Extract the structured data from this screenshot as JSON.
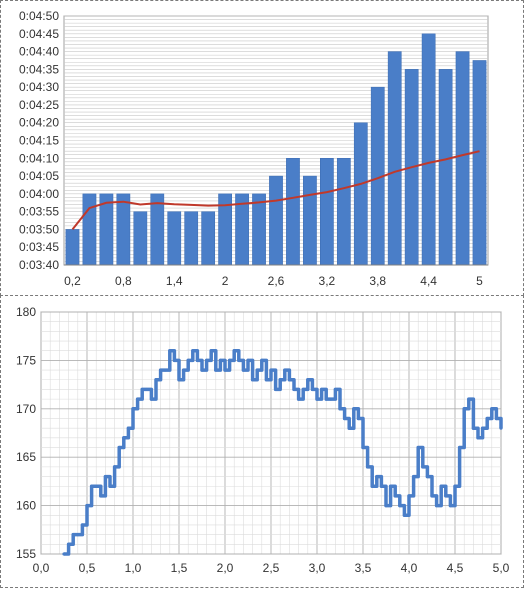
{
  "chart_data": [
    {
      "type": "bar",
      "title": "",
      "xlabel": "",
      "ylabel": "",
      "y_tick_labels": [
        "0:03:40",
        "0:03:45",
        "0:03:50",
        "0:03:55",
        "0:04:00",
        "0:04:05",
        "0:04:10",
        "0:04:15",
        "0:04:20",
        "0:04:25",
        "0:04:30",
        "0:04:35",
        "0:04:40",
        "0:04:45",
        "0:04:50"
      ],
      "ylim_seconds": [
        220,
        290
      ],
      "x_tick_labels": [
        "0,2",
        "0,8",
        "1,4",
        "2",
        "2,6",
        "3,2",
        "3,8",
        "4,4",
        "5"
      ],
      "categories": [
        0.2,
        0.4,
        0.6,
        0.8,
        1.0,
        1.2,
        1.4,
        1.6,
        1.8,
        2.0,
        2.2,
        2.4,
        2.6,
        2.8,
        3.0,
        3.2,
        3.4,
        3.6,
        3.8,
        4.0,
        4.2,
        4.4,
        4.6,
        4.8,
        5.0
      ],
      "values_seconds": [
        230,
        240,
        240,
        240,
        235,
        240,
        235,
        235,
        235,
        240,
        240,
        240,
        245,
        250,
        245,
        250,
        250,
        260,
        270,
        280,
        275,
        285,
        275,
        280,
        277.5
      ],
      "trend_seconds": [
        230,
        236,
        237.5,
        237.8,
        237,
        237.4,
        237.1,
        236.9,
        236.7,
        236.8,
        237.2,
        237.6,
        238.1,
        238.9,
        239.7,
        240.5,
        241.6,
        242.8,
        244.4,
        246.2,
        247.5,
        248.7,
        249.7,
        250.9,
        252
      ],
      "bar_color": "#4a7ec8",
      "trend_color": "#c0392b",
      "grid": true
    },
    {
      "type": "line",
      "title": "",
      "xlabel": "",
      "ylabel": "",
      "x_tick_labels": [
        "0,0",
        "0,5",
        "1,0",
        "1,5",
        "2,0",
        "2,5",
        "3,0",
        "3,5",
        "4,0",
        "4,5",
        "5,0"
      ],
      "y_tick_labels": [
        "155",
        "160",
        "165",
        "170",
        "175",
        "180"
      ],
      "xlim": [
        0,
        5
      ],
      "ylim": [
        155,
        180
      ],
      "x": [
        0.25,
        0.3,
        0.35,
        0.4,
        0.45,
        0.5,
        0.55,
        0.6,
        0.65,
        0.7,
        0.75,
        0.8,
        0.85,
        0.9,
        0.95,
        1.0,
        1.05,
        1.1,
        1.15,
        1.2,
        1.25,
        1.3,
        1.35,
        1.4,
        1.45,
        1.5,
        1.55,
        1.6,
        1.65,
        1.7,
        1.75,
        1.8,
        1.85,
        1.9,
        1.95,
        2.0,
        2.05,
        2.1,
        2.15,
        2.2,
        2.25,
        2.3,
        2.35,
        2.4,
        2.45,
        2.5,
        2.55,
        2.6,
        2.65,
        2.7,
        2.75,
        2.8,
        2.85,
        2.9,
        2.95,
        3.0,
        3.05,
        3.1,
        3.15,
        3.2,
        3.25,
        3.3,
        3.35,
        3.4,
        3.45,
        3.5,
        3.55,
        3.6,
        3.65,
        3.7,
        3.75,
        3.8,
        3.85,
        3.9,
        3.95,
        4.0,
        4.05,
        4.1,
        4.15,
        4.2,
        4.25,
        4.3,
        4.35,
        4.4,
        4.45,
        4.5,
        4.55,
        4.6,
        4.65,
        4.7,
        4.75,
        4.8,
        4.85,
        4.9,
        4.95,
        5.0
      ],
      "values": [
        155,
        156,
        157,
        157,
        158,
        160,
        162,
        162,
        161,
        163,
        162,
        164,
        166,
        167,
        168,
        170,
        171,
        172,
        172,
        171,
        173,
        174,
        174,
        176,
        175,
        173,
        174,
        175,
        176,
        175,
        174,
        175,
        176,
        174,
        175,
        174,
        175,
        176,
        175,
        174,
        175,
        173,
        174,
        175,
        173,
        174,
        172,
        173,
        174,
        173,
        172,
        171,
        172,
        173,
        172,
        171,
        172,
        171,
        171,
        172,
        170,
        169,
        168,
        170,
        169,
        166,
        164,
        162,
        163,
        162,
        160,
        162,
        161,
        160,
        159,
        161,
        163,
        166,
        164,
        163,
        161,
        160,
        162,
        161,
        160,
        162,
        166,
        170,
        171,
        168,
        167,
        168,
        169,
        170,
        169,
        168
      ],
      "line_color": "#4a7ec8",
      "grid": true
    }
  ]
}
